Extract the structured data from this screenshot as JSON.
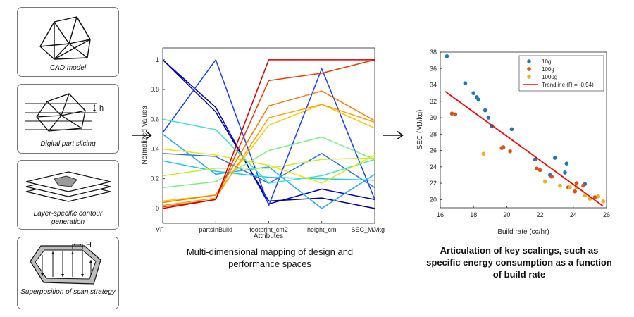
{
  "steps": [
    {
      "label": "CAD model"
    },
    {
      "label": "Digital part slicing",
      "dim": "h"
    },
    {
      "label": "Layer-specific contour generation"
    },
    {
      "label": "Superposition of scan strategy",
      "dim": "H"
    }
  ],
  "captions": {
    "middle": "Multi-dimensional mapping of design and performance spaces",
    "right": "Articulation of key scalings, such as specific energy consumption as a function of build rate"
  },
  "chart_data": [
    {
      "type": "line",
      "subtype": "parallel-coordinates",
      "xlabel": "Attributes",
      "ylabel": "Normalized Values",
      "categories": [
        "VF",
        "partsInBuild",
        "footprint_cm2",
        "height_cm",
        "SEC_MJ/kg"
      ],
      "yticks": [
        0,
        0.2,
        0.4,
        0.6,
        0.8,
        1
      ],
      "ylim": [
        -0.1,
        1.08
      ],
      "grid": false,
      "series": [
        {
          "color": "#00009a",
          "values": [
            1.0,
            0.65,
            0.05,
            0.07,
            0.0
          ]
        },
        {
          "color": "#0000cc",
          "values": [
            1.0,
            0.68,
            0.03,
            0.13,
            0.06
          ]
        },
        {
          "color": "#1a3cff",
          "values": [
            0.51,
            1.0,
            0.02,
            0.94,
            0.06
          ]
        },
        {
          "color": "#2f6dff",
          "values": [
            0.37,
            0.35,
            0.17,
            0.37,
            0.14
          ]
        },
        {
          "color": "#28a5ff",
          "values": [
            0.5,
            0.23,
            0.28,
            0.0,
            0.23
          ]
        },
        {
          "color": "#1ec8e6",
          "values": [
            0.32,
            0.25,
            0.21,
            0.2,
            0.19
          ]
        },
        {
          "color": "#3ce6c8",
          "values": [
            0.6,
            0.53,
            0.17,
            0.22,
            0.33
          ]
        },
        {
          "color": "#7cf07a",
          "values": [
            0.14,
            0.18,
            0.39,
            0.48,
            0.33
          ]
        },
        {
          "color": "#c4f020",
          "values": [
            0.22,
            0.27,
            0.27,
            0.33,
            0.34
          ]
        },
        {
          "color": "#eaea00",
          "values": [
            0.4,
            0.36,
            0.29,
            0.17,
            0.36
          ]
        },
        {
          "color": "#ffc800",
          "values": [
            0.05,
            0.09,
            0.56,
            0.7,
            0.54
          ]
        },
        {
          "color": "#ffa000",
          "values": [
            0.02,
            0.07,
            0.61,
            0.7,
            0.58
          ]
        },
        {
          "color": "#ff7800",
          "values": [
            0.04,
            0.09,
            0.69,
            0.79,
            0.59
          ]
        },
        {
          "color": "#f03c00",
          "values": [
            0.01,
            0.06,
            0.86,
            0.91,
            1.0
          ]
        },
        {
          "color": "#cc0000",
          "values": [
            0.0,
            0.06,
            1.0,
            1.0,
            1.0
          ]
        }
      ]
    },
    {
      "type": "scatter",
      "xlabel": "Build rate (cc/hr)",
      "ylabel": "SEC (MJ/kg)",
      "xlim": [
        16,
        26
      ],
      "ylim": [
        19,
        38
      ],
      "xticks": [
        16,
        18,
        20,
        22,
        24,
        26
      ],
      "yticks": [
        20,
        22,
        24,
        26,
        28,
        30,
        32,
        34,
        36,
        38
      ],
      "grid": false,
      "legend": "top-right",
      "series": [
        {
          "name": "10g",
          "color": "#1f77b4",
          "points": [
            [
              16.4,
              37.5
            ],
            [
              17.5,
              34.2
            ],
            [
              18.0,
              33.0
            ],
            [
              18.2,
              32.5
            ],
            [
              18.3,
              32.2
            ],
            [
              18.7,
              30.9
            ],
            [
              18.9,
              30.0
            ],
            [
              19.1,
              29.0
            ],
            [
              20.3,
              28.6
            ],
            [
              21.7,
              24.9
            ],
            [
              22.9,
              25.1
            ],
            [
              23.6,
              24.4
            ],
            [
              22.6,
              23.0
            ],
            [
              23.5,
              23.3
            ],
            [
              24.7,
              21.9
            ]
          ]
        },
        {
          "name": "100g",
          "color": "#d95319",
          "points": [
            [
              16.7,
              30.5
            ],
            [
              16.9,
              30.4
            ],
            [
              19.7,
              26.3
            ],
            [
              19.8,
              26.4
            ],
            [
              20.2,
              25.9
            ],
            [
              21.8,
              23.8
            ],
            [
              22.0,
              23.6
            ],
            [
              22.7,
              22.8
            ],
            [
              23.7,
              21.5
            ],
            [
              24.2,
              22.0
            ],
            [
              24.1,
              21.0
            ],
            [
              24.6,
              21.7
            ],
            [
              25.3,
              20.3
            ]
          ]
        },
        {
          "name": "1000g",
          "color": "#edb120",
          "points": [
            [
              18.6,
              25.6
            ],
            [
              22.3,
              22.2
            ],
            [
              23.2,
              21.7
            ],
            [
              23.8,
              21.5
            ],
            [
              24.2,
              21.5
            ],
            [
              24.7,
              20.5
            ],
            [
              25.0,
              20.1
            ],
            [
              25.5,
              20.4
            ],
            [
              25.8,
              19.8
            ]
          ]
        }
      ],
      "trendline": {
        "name": "Trendline (R = -0.94)",
        "color": "#ff0000",
        "x": [
          16.3,
          25.8
        ],
        "y": [
          33.2,
          19.2
        ]
      }
    }
  ]
}
